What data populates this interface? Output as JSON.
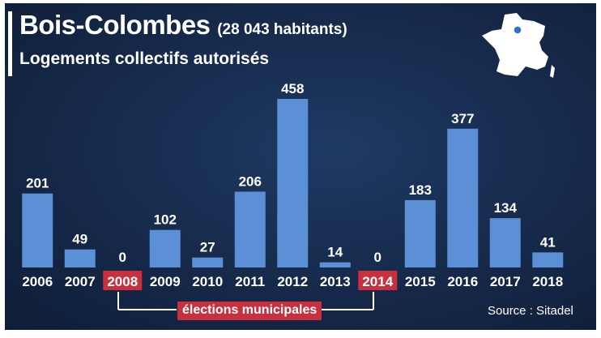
{
  "header": {
    "title": "Bois-Colombes",
    "population": "(28 043 habitants)",
    "subtitle": "Logements collectifs autorisés"
  },
  "chart_data": {
    "type": "bar",
    "title": "Bois-Colombes",
    "subtitle": "Logements collectifs autorisés",
    "categories": [
      "2006",
      "2007",
      "2008",
      "2009",
      "2010",
      "2011",
      "2012",
      "2013",
      "2014",
      "2015",
      "2016",
      "2017",
      "2018"
    ],
    "values": [
      201,
      49,
      0,
      102,
      27,
      206,
      458,
      14,
      0,
      183,
      377,
      134,
      41
    ],
    "highlighted_categories": [
      "2008",
      "2014"
    ],
    "bar_color": "#5b8fd6",
    "highlight_color": "#c8303d",
    "xlabel": "",
    "ylabel": "",
    "ylim": [
      0,
      458
    ],
    "grid": false,
    "annotation": "élections municipales"
  },
  "footer": {
    "source": "Source : Sitadel"
  }
}
